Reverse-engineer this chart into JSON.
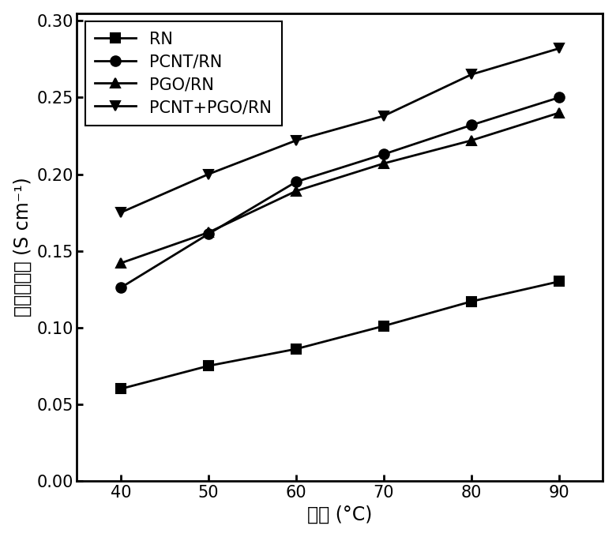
{
  "x": [
    40,
    50,
    60,
    70,
    80,
    90
  ],
  "series": [
    {
      "label": "RN",
      "values": [
        0.06,
        0.075,
        0.086,
        0.101,
        0.117,
        0.13
      ],
      "marker": "s",
      "color": "#000000"
    },
    {
      "label": "PCNT/RN",
      "values": [
        0.126,
        0.161,
        0.195,
        0.213,
        0.232,
        0.25
      ],
      "marker": "o",
      "color": "#000000"
    },
    {
      "label": "PGO/RN",
      "values": [
        0.142,
        0.162,
        0.189,
        0.207,
        0.222,
        0.24
      ],
      "marker": "^",
      "color": "#000000"
    },
    {
      "label": "PCNT+PGO/RN",
      "values": [
        0.175,
        0.2,
        0.222,
        0.238,
        0.265,
        0.282
      ],
      "marker": "v",
      "color": "#000000"
    }
  ],
  "xlabel_zh": "温度",
  "xlabel_unit": " (°C)",
  "ylabel_zh": "质子传导率",
  "ylabel_unit": " (S cm⁻¹)",
  "xlim": [
    35,
    95
  ],
  "ylim": [
    0.0,
    0.305
  ],
  "xticks": [
    40,
    50,
    60,
    70,
    80,
    90
  ],
  "yticks": [
    0.0,
    0.05,
    0.1,
    0.15,
    0.2,
    0.25,
    0.3
  ],
  "linewidth": 2.0,
  "markersize": 9,
  "legend_fontsize": 15,
  "axis_fontsize": 17,
  "tick_fontsize": 15,
  "background_color": "#ffffff"
}
